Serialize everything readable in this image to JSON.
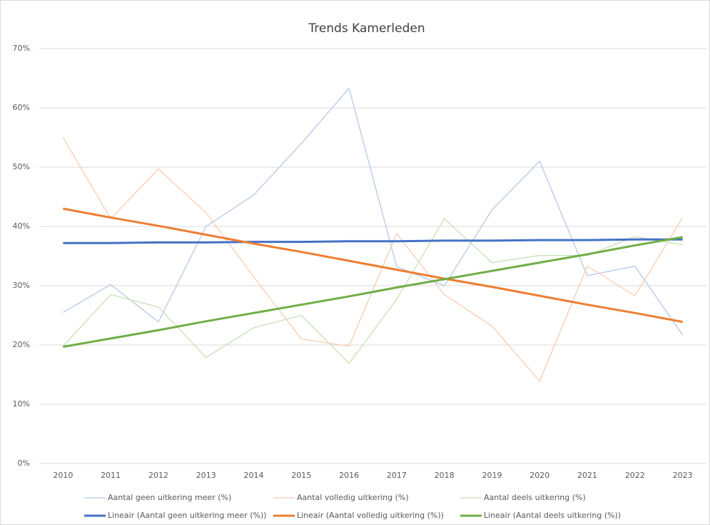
{
  "chart_data": {
    "type": "line",
    "title": "Trends Kamerleden",
    "categories": [
      "2010",
      "2011",
      "2012",
      "2013",
      "2014",
      "2015",
      "2016",
      "2017",
      "2018",
      "2019",
      "2020",
      "2021",
      "2022",
      "2023"
    ],
    "series": [
      {
        "name": "Aantal geen uitkering meer (%)",
        "color": "#b4c7e7",
        "values": [
          25.5,
          30.2,
          23.9,
          40.0,
          45.3,
          54.0,
          63.3,
          33.2,
          30.0,
          42.8,
          51.0,
          31.7,
          33.3,
          21.7
        ]
      },
      {
        "name": "Aantal volledig uitkering (%)",
        "color": "#f8cbad",
        "values": [
          55.0,
          41.3,
          49.7,
          42.3,
          31.5,
          21.0,
          19.8,
          38.8,
          28.5,
          23.2,
          13.9,
          33.3,
          28.3,
          41.5
        ]
      },
      {
        "name": "Aantal deels uitkering (%)",
        "color": "#c5e0b4",
        "values": [
          19.8,
          28.5,
          26.4,
          17.9,
          22.9,
          25.0,
          16.9,
          27.7,
          41.3,
          33.9,
          35.1,
          35.1,
          38.3,
          36.9
        ]
      },
      {
        "name": "Lineair (Aantal geen uitkering meer (%))",
        "color": "#4472c4",
        "trendline": true,
        "values": [
          37.2,
          37.2,
          37.3,
          37.3,
          37.4,
          37.4,
          37.5,
          37.5,
          37.6,
          37.6,
          37.7,
          37.7,
          37.8,
          37.8
        ]
      },
      {
        "name": "Lineair (Aantal volledig uitkering (%))",
        "color": "#ed7d31",
        "trendline": true,
        "values": [
          43.0,
          41.5,
          40.1,
          38.6,
          37.1,
          35.7,
          34.2,
          32.7,
          31.2,
          29.8,
          28.3,
          26.8,
          25.4,
          23.9
        ]
      },
      {
        "name": "Lineair (Aantal deels uitkering (%))",
        "color": "#70ad47",
        "trendline": true,
        "values": [
          19.7,
          21.1,
          22.5,
          24.0,
          25.4,
          26.8,
          28.2,
          29.7,
          31.1,
          32.5,
          33.9,
          35.3,
          36.8,
          38.2
        ]
      }
    ],
    "ylim": [
      0,
      70
    ],
    "yticks": [
      {
        "value": 0,
        "label": "0%"
      },
      {
        "value": 10,
        "label": "10%"
      },
      {
        "value": 20,
        "label": "20%"
      },
      {
        "value": 30,
        "label": "30%"
      },
      {
        "value": 40,
        "label": "40%"
      },
      {
        "value": 50,
        "label": "50%"
      },
      {
        "value": 60,
        "label": "60%"
      },
      {
        "value": 70,
        "label": "70%"
      }
    ],
    "grid": true,
    "legend": "bottom"
  }
}
